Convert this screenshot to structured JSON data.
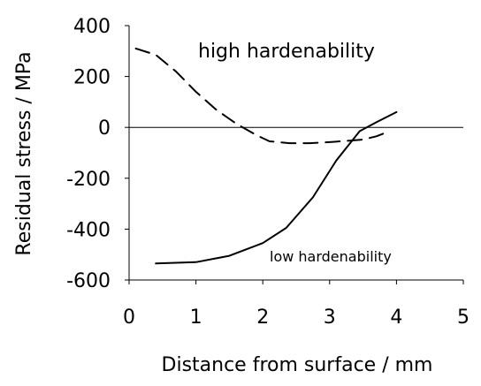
{
  "chart_data": {
    "type": "line",
    "title": "",
    "xlabel": "Distance from surface / mm",
    "ylabel": "Residual stress / MPa",
    "xlim": [
      0,
      5
    ],
    "ylim": [
      -600,
      400
    ],
    "x_ticks": [
      "0",
      "1",
      "2",
      "3",
      "4",
      "5"
    ],
    "y_ticks": [
      "400",
      "200",
      "0",
      "-200",
      "-400",
      "-600"
    ],
    "grid": false,
    "zero_line": true,
    "series": [
      {
        "name": "high hardenability",
        "style": "dashed",
        "color": "#000000",
        "x": [
          0.1,
          0.4,
          0.7,
          1.0,
          1.3,
          1.6,
          1.9,
          2.1,
          2.4,
          2.7,
          3.0,
          3.3,
          3.5,
          3.7,
          3.9
        ],
        "y": [
          310,
          285,
          220,
          140,
          70,
          15,
          -30,
          -55,
          -62,
          -62,
          -58,
          -52,
          -48,
          -35,
          -15
        ]
      },
      {
        "name": "low hardenability",
        "style": "solid",
        "color": "#000000",
        "x": [
          0.4,
          1.0,
          1.5,
          2.0,
          2.35,
          2.75,
          3.1,
          3.45,
          3.7,
          4.0
        ],
        "y": [
          -535,
          -530,
          -505,
          -455,
          -395,
          -275,
          -130,
          -15,
          20,
          60
        ]
      }
    ],
    "annotations": {
      "high": "high hardenability",
      "low": "low hardenability"
    }
  }
}
